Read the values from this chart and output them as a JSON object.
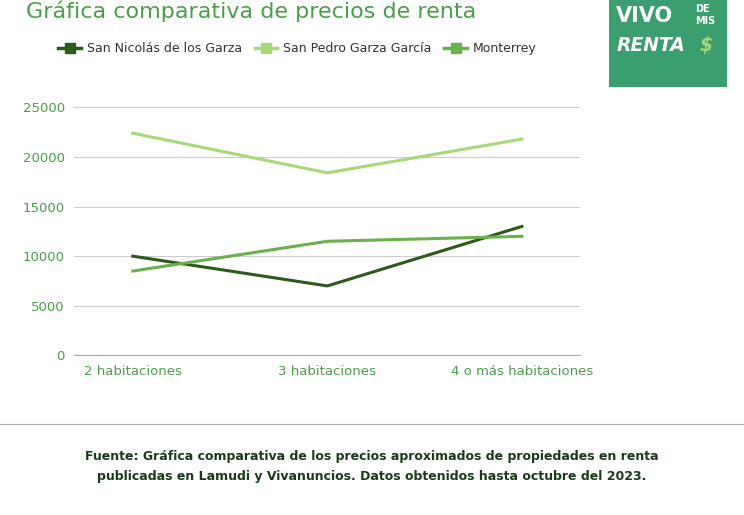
{
  "title": "Gráfica comparativa de precios de renta",
  "title_color": "#4a9e4a",
  "title_fontsize": 16,
  "categories": [
    "2 habitaciones",
    "3 habitaciones",
    "4 o más habitaciones"
  ],
  "series": [
    {
      "name": "San Nicolás de los Garza",
      "values": [
        10000,
        7000,
        13000
      ],
      "color": "#2d5a1b",
      "linewidth": 2.2,
      "linestyle": "-"
    },
    {
      "name": "San Pedro Garza García",
      "values": [
        22400,
        18400,
        21800
      ],
      "color": "#a8d878",
      "linewidth": 2.2,
      "linestyle": "-"
    },
    {
      "name": "Monterrey",
      "values": [
        8500,
        11500,
        12000
      ],
      "color": "#6ab04c",
      "linewidth": 2.2,
      "linestyle": "-"
    }
  ],
  "ylim": [
    0,
    27000
  ],
  "yticks": [
    0,
    5000,
    10000,
    15000,
    20000,
    25000
  ],
  "grid_color": "#cccccc",
  "background_color": "#ffffff",
  "footer_text": "Fuente: Gráfica comparativa de los precios aproximados de propiedades en renta\npublicadas en Lamudi y Vivanuncios. Datos obtenidos hasta octubre del 2023.",
  "footer_bg": "#daeada",
  "footer_fontsize": 9,
  "axis_tick_color": "#4a9e4a",
  "tick_fontsize": 9.5,
  "legend_fontsize": 9,
  "logo_bg": "#3a9e6e",
  "logo_text_color": "#ffffff",
  "logo_accent_color": "#a8d878"
}
